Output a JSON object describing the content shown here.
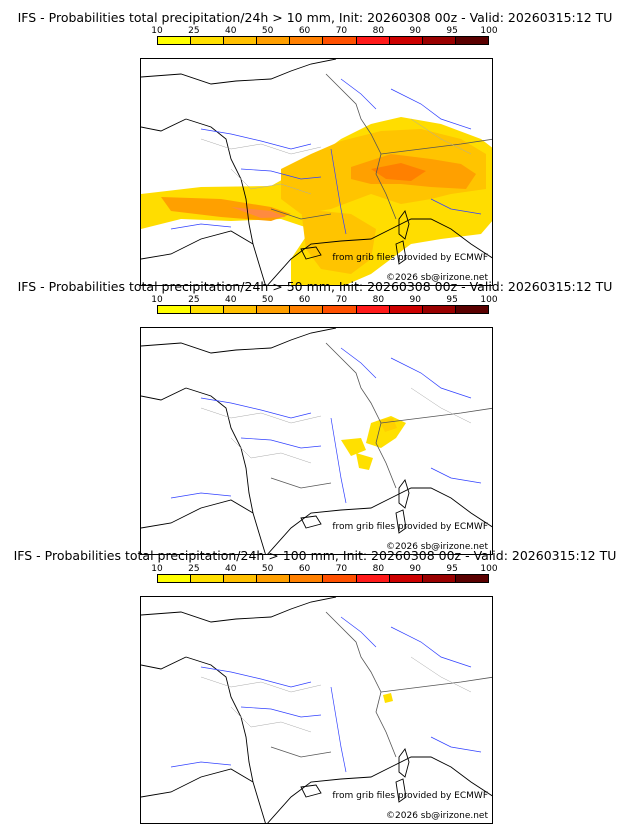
{
  "panels": [
    {
      "title": "IFS - Probabilities total precipitation/24h > 10 mm, Init: 20260308 00z - Valid: 20260315:12 TU",
      "threshold": "10 mm"
    },
    {
      "title": "IFS - Probabilities total precipitation/24h > 50 mm, Init: 20260308 00z - Valid: 20260315:12 TU",
      "threshold": "50 mm"
    },
    {
      "title": "IFS - Probabilities total precipitation/24h > 100 mm, Init: 20260308 00z - Valid: 20260315:12 TU",
      "threshold": "100 mm"
    }
  ],
  "colorbar": {
    "ticks": [
      "10",
      "25",
      "40",
      "50",
      "60",
      "70",
      "80",
      "90",
      "95",
      "100"
    ],
    "colors": [
      "#ffff00",
      "#ffe000",
      "#ffc000",
      "#ff9f00",
      "#ff8000",
      "#ff5000",
      "#ff1a1a",
      "#cc0000",
      "#990000",
      "#5a0000"
    ]
  },
  "credits": {
    "source": "from grib files provided by ECMWF",
    "copyright": "©2026 sb@irizone.net"
  }
}
